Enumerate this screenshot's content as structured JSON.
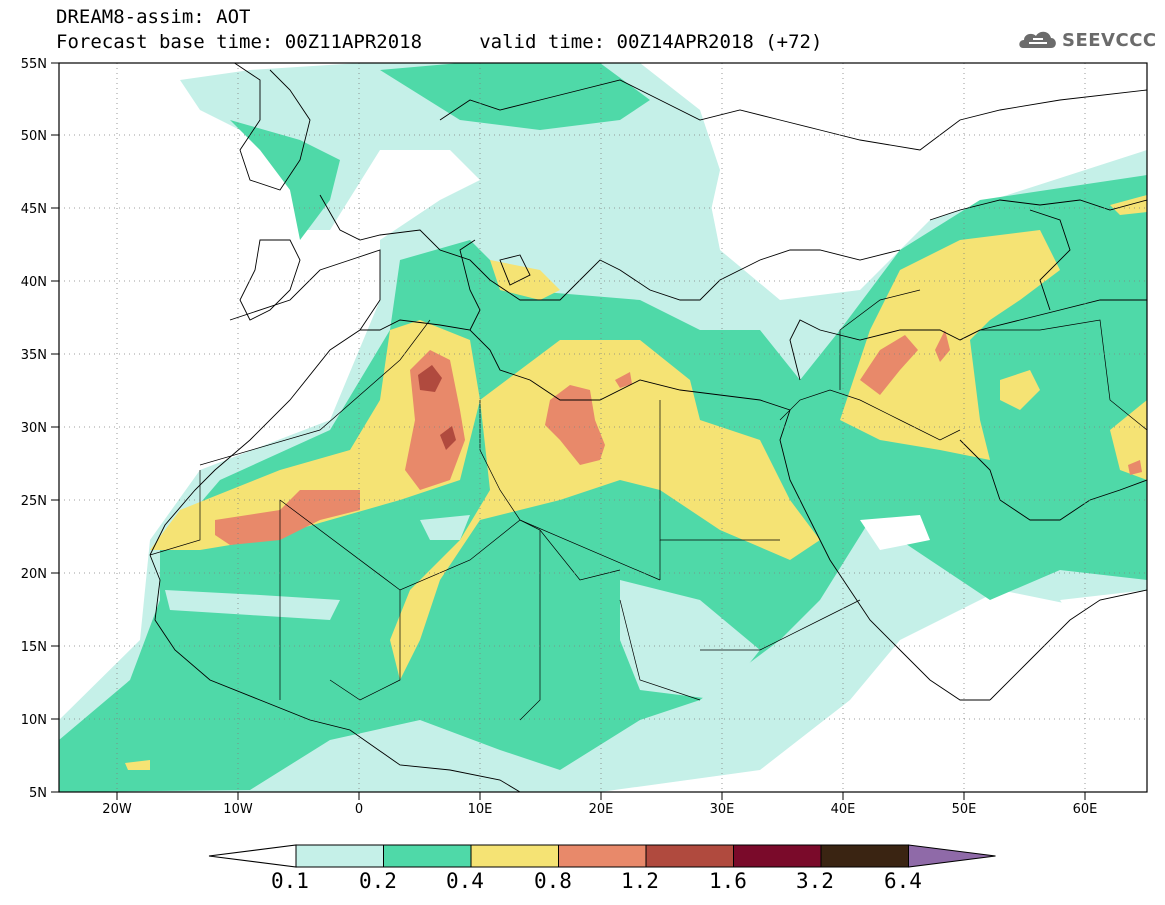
{
  "title": {
    "line1": "DREAM8-assim: AOT",
    "line2": "Forecast base time: 00Z11APR2018     valid time: 00Z14APR2018 (+72)"
  },
  "logo": {
    "text": "SEEVCCC",
    "icon": "cloud-icon"
  },
  "map": {
    "projection": "lat-lon",
    "lon_range": [
      -25,
      65
    ],
    "lat_range": [
      5,
      55
    ],
    "lat_ticks": [
      "5N",
      "10N",
      "15N",
      "20N",
      "25N",
      "30N",
      "35N",
      "40N",
      "45N",
      "50N",
      "55N"
    ],
    "lon_ticks": [
      "20W",
      "10W",
      "0",
      "10E",
      "20E",
      "30E",
      "40E",
      "50E",
      "60E"
    ],
    "grid": true,
    "grid_style": "dotted"
  },
  "colorbar": {
    "labels": [
      "0.1",
      "0.2",
      "0.4",
      "0.8",
      "1.2",
      "1.6",
      "3.2",
      "6.4"
    ],
    "colors": [
      "#ffffff",
      "#c5f0e8",
      "#4fd9a8",
      "#f5e374",
      "#e8896a",
      "#b04a3e",
      "#7a0a2a",
      "#3a2412",
      "#8f6aa8"
    ],
    "extend": "both"
  }
}
